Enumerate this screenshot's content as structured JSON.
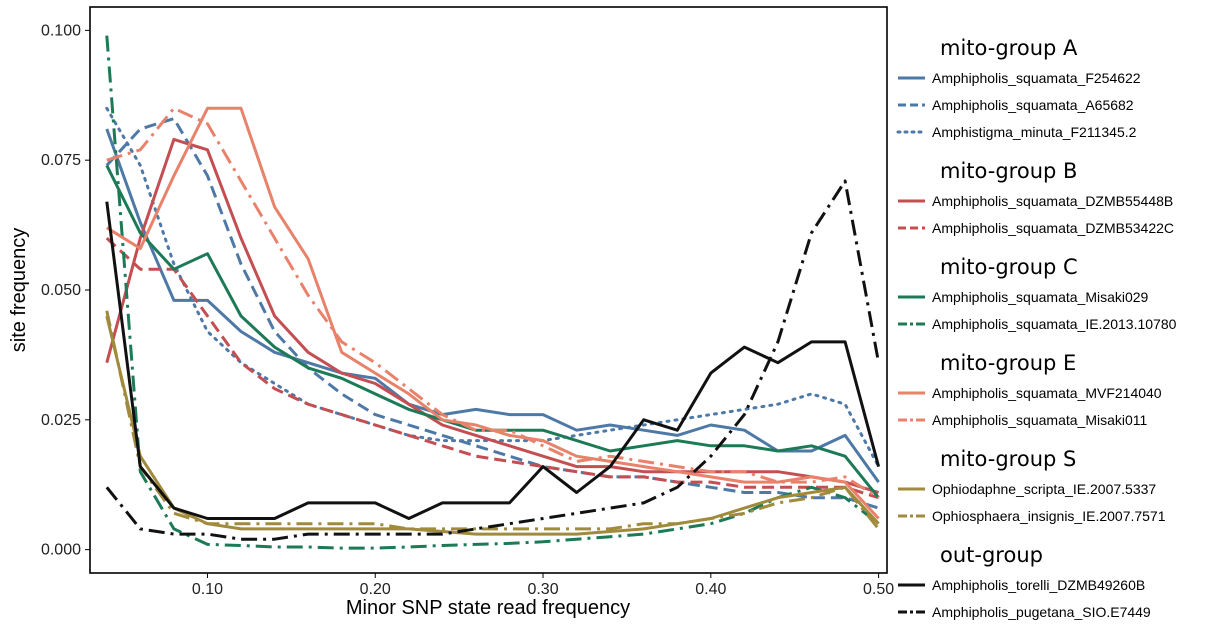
{
  "chart_data": {
    "type": "line",
    "xlabel": "Minor SNP state read frequency",
    "ylabel": "site frequency",
    "xlim": [
      0.03,
      0.505
    ],
    "ylim": [
      -0.0045,
      0.1045
    ],
    "xticks": [
      {
        "v": 0.1,
        "label": "0.10"
      },
      {
        "v": 0.2,
        "label": "0.20"
      },
      {
        "v": 0.3,
        "label": "0.30"
      },
      {
        "v": 0.4,
        "label": "0.40"
      },
      {
        "v": 0.5,
        "label": "0.50"
      }
    ],
    "yticks": [
      {
        "v": 0.0,
        "label": "0.000"
      },
      {
        "v": 0.025,
        "label": "0.025"
      },
      {
        "v": 0.05,
        "label": "0.050"
      },
      {
        "v": 0.075,
        "label": "0.075"
      },
      {
        "v": 0.1,
        "label": "0.100"
      }
    ],
    "grid": false,
    "legend_position": "right",
    "x": [
      0.04,
      0.06,
      0.08,
      0.1,
      0.12,
      0.14,
      0.16,
      0.18,
      0.2,
      0.22,
      0.24,
      0.26,
      0.28,
      0.3,
      0.32,
      0.34,
      0.36,
      0.38,
      0.4,
      0.42,
      0.44,
      0.46,
      0.48,
      0.5
    ],
    "groups": [
      {
        "title": "mito-group A",
        "series": [
          {
            "name": "Amphipholis_squamata_F254622",
            "color": "#4e79a7",
            "dash": "solid",
            "values": [
              0.081,
              0.063,
              0.048,
              0.048,
              0.042,
              0.038,
              0.036,
              0.034,
              0.033,
              0.028,
              0.026,
              0.027,
              0.026,
              0.026,
              0.023,
              0.024,
              0.023,
              0.022,
              0.024,
              0.023,
              0.019,
              0.019,
              0.022,
              0.013
            ]
          },
          {
            "name": "Amphipholis_squamata_A65682",
            "color": "#4e79a7",
            "dash": "dashed",
            "values": [
              0.074,
              0.081,
              0.083,
              0.072,
              0.055,
              0.042,
              0.035,
              0.03,
              0.026,
              0.024,
              0.022,
              0.02,
              0.018,
              0.016,
              0.015,
              0.014,
              0.014,
              0.013,
              0.012,
              0.011,
              0.011,
              0.01,
              0.01,
              0.008
            ]
          },
          {
            "name": "Amphistigma_minuta_F211345.2",
            "color": "#4e79a7",
            "dash": "dotted",
            "values": [
              0.085,
              0.074,
              0.055,
              0.042,
              0.036,
              0.032,
              0.028,
              0.026,
              0.024,
              0.022,
              0.021,
              0.021,
              0.021,
              0.021,
              0.022,
              0.023,
              0.024,
              0.025,
              0.026,
              0.027,
              0.028,
              0.03,
              0.028,
              0.016
            ]
          }
        ]
      },
      {
        "title": "mito-group B",
        "series": [
          {
            "name": "Amphipholis_squamata_DZMB55448B",
            "color": "#c44e52",
            "dash": "solid",
            "values": [
              0.036,
              0.06,
              0.079,
              0.077,
              0.06,
              0.045,
              0.038,
              0.034,
              0.032,
              0.028,
              0.024,
              0.022,
              0.02,
              0.018,
              0.016,
              0.016,
              0.015,
              0.015,
              0.015,
              0.015,
              0.015,
              0.014,
              0.013,
              0.011
            ]
          },
          {
            "name": "Amphipholis_squamata_DZMB53422C",
            "color": "#c44e52",
            "dash": "dashed",
            "values": [
              0.06,
              0.054,
              0.054,
              0.045,
              0.036,
              0.031,
              0.028,
              0.026,
              0.024,
              0.022,
              0.02,
              0.018,
              0.017,
              0.016,
              0.015,
              0.014,
              0.014,
              0.013,
              0.013,
              0.012,
              0.012,
              0.012,
              0.012,
              0.01
            ]
          }
        ]
      },
      {
        "title": "mito-group C",
        "series": [
          {
            "name": "Amphipholis_squamata_Misaki029",
            "color": "#1d7a57",
            "dash": "solid",
            "values": [
              0.074,
              0.061,
              0.054,
              0.057,
              0.045,
              0.039,
              0.035,
              0.033,
              0.03,
              0.027,
              0.025,
              0.023,
              0.023,
              0.023,
              0.021,
              0.019,
              0.02,
              0.021,
              0.02,
              0.02,
              0.019,
              0.02,
              0.018,
              0.01
            ]
          },
          {
            "name": "Amphipholis_squamata_IE.2013.10780",
            "color": "#1d7a57",
            "dash": "dashdot",
            "values": [
              0.099,
              0.015,
              0.004,
              0.001,
              0.0008,
              0.0005,
              0.0005,
              0.0003,
              0.0003,
              0.0005,
              0.0008,
              0.001,
              0.0012,
              0.0015,
              0.002,
              0.0025,
              0.003,
              0.004,
              0.005,
              0.007,
              0.01,
              0.012,
              0.01,
              0.005
            ]
          }
        ]
      },
      {
        "title": "mito-group E",
        "series": [
          {
            "name": "Amphipholis_squamata_MVF214040",
            "color": "#e8826a",
            "dash": "solid",
            "values": [
              0.062,
              0.058,
              0.072,
              0.085,
              0.085,
              0.066,
              0.056,
              0.038,
              0.034,
              0.03,
              0.025,
              0.024,
              0.022,
              0.021,
              0.018,
              0.017,
              0.016,
              0.015,
              0.014,
              0.013,
              0.013,
              0.014,
              0.013,
              0.006
            ]
          },
          {
            "name": "Amphipholis_squamata_Misaki011",
            "color": "#e8826a",
            "dash": "dashdot",
            "values": [
              0.075,
              0.077,
              0.085,
              0.082,
              0.071,
              0.06,
              0.049,
              0.04,
              0.036,
              0.031,
              0.026,
              0.023,
              0.023,
              0.02,
              0.017,
              0.018,
              0.017,
              0.016,
              0.015,
              0.015,
              0.013,
              0.013,
              0.014,
              0.01
            ]
          }
        ]
      },
      {
        "title": "mito-group S",
        "series": [
          {
            "name": "Ophiodaphne_scripta_IE.2007.5337",
            "color": "#a08a3c",
            "dash": "solid",
            "values": [
              0.045,
              0.018,
              0.008,
              0.005,
              0.004,
              0.004,
              0.004,
              0.004,
              0.004,
              0.004,
              0.0035,
              0.003,
              0.003,
              0.003,
              0.003,
              0.0035,
              0.004,
              0.005,
              0.006,
              0.008,
              0.01,
              0.011,
              0.012,
              0.005
            ]
          },
          {
            "name": "Ophiosphaera_insignis_IE.2007.7571",
            "color": "#a08a3c",
            "dash": "dashdot",
            "values": [
              0.046,
              0.016,
              0.007,
              0.005,
              0.005,
              0.005,
              0.005,
              0.005,
              0.005,
              0.004,
              0.004,
              0.004,
              0.004,
              0.004,
              0.004,
              0.004,
              0.005,
              0.005,
              0.006,
              0.007,
              0.009,
              0.01,
              0.012,
              0.004
            ]
          }
        ]
      },
      {
        "title": "out-group",
        "series": [
          {
            "name": "Amphipholis_torelli_DZMB49260B",
            "color": "#111111",
            "dash": "solid",
            "values": [
              0.067,
              0.016,
              0.008,
              0.006,
              0.006,
              0.006,
              0.009,
              0.009,
              0.009,
              0.006,
              0.009,
              0.009,
              0.009,
              0.016,
              0.011,
              0.016,
              0.025,
              0.023,
              0.034,
              0.039,
              0.036,
              0.04,
              0.04,
              0.016
            ]
          },
          {
            "name": "Amphipholis_pugetana_SIO.E7449",
            "color": "#111111",
            "dash": "dashdot",
            "values": [
              0.012,
              0.004,
              0.003,
              0.003,
              0.002,
              0.002,
              0.003,
              0.003,
              0.003,
              0.003,
              0.003,
              0.004,
              0.005,
              0.006,
              0.007,
              0.008,
              0.009,
              0.012,
              0.018,
              0.026,
              0.04,
              0.061,
              0.071,
              0.036
            ]
          }
        ]
      }
    ]
  }
}
